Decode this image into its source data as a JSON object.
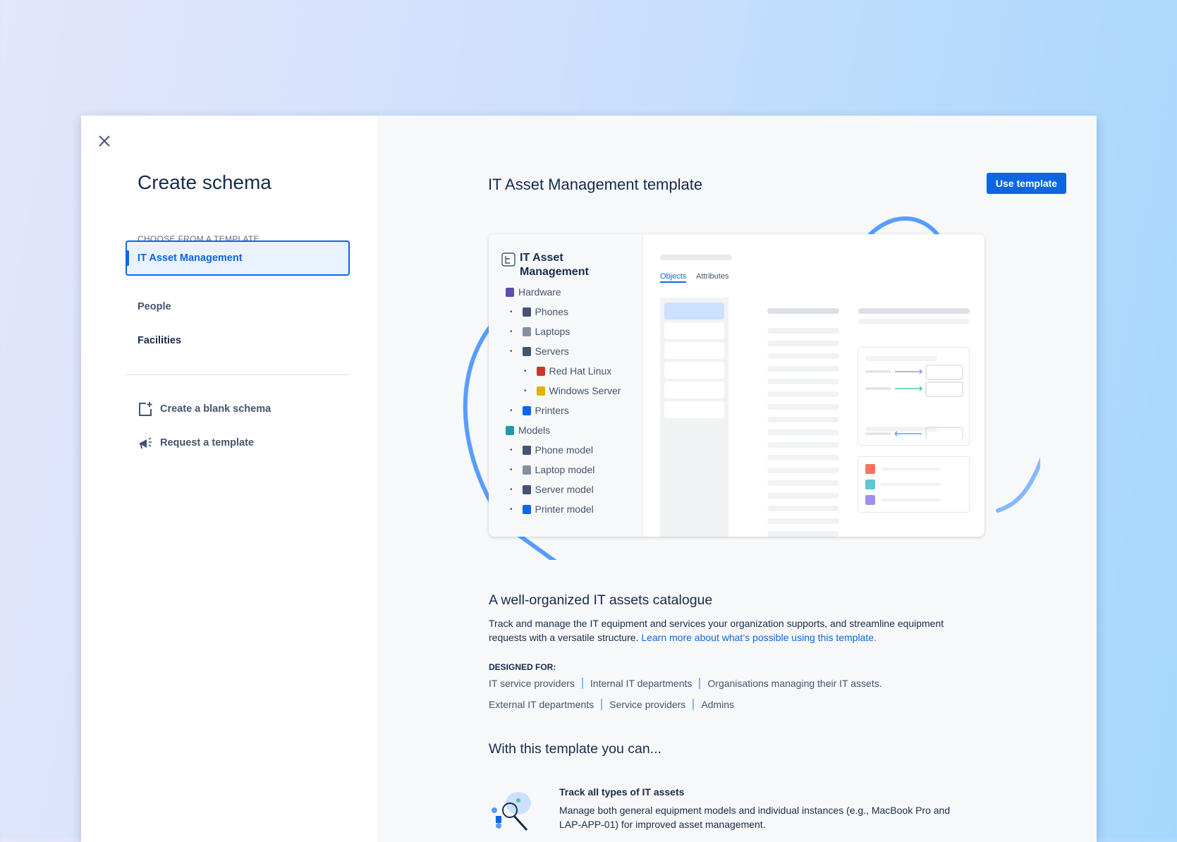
{
  "sidebar": {
    "title": "Create schema",
    "section_label": "CHOOSE FROM A TEMPLATE",
    "templates": [
      {
        "label": "IT Asset Management",
        "selected": true
      },
      {
        "label": "People"
      },
      {
        "label": "Facilities"
      }
    ],
    "actions": [
      {
        "label": "Create a blank schema",
        "icon": "add-page-icon"
      },
      {
        "label": "Request a template",
        "icon": "megaphone-icon"
      }
    ]
  },
  "main": {
    "title": "IT Asset Management template",
    "use_button": "Use template",
    "preview": {
      "schema_name": "IT Asset Management",
      "tabs": [
        "Objects",
        "Attributes"
      ],
      "tree": [
        {
          "label": "Hardware",
          "level": 0
        },
        {
          "label": "Phones",
          "level": 1
        },
        {
          "label": "Laptops",
          "level": 1
        },
        {
          "label": "Servers",
          "level": 1
        },
        {
          "label": "Red Hat Linux",
          "level": 2
        },
        {
          "label": "Windows Server",
          "level": 2
        },
        {
          "label": "Printers",
          "level": 1
        },
        {
          "label": "Models",
          "level": 0
        },
        {
          "label": "Phone model",
          "level": 1
        },
        {
          "label": "Laptop model",
          "level": 1
        },
        {
          "label": "Server model",
          "level": 1
        },
        {
          "label": "Printer model",
          "level": 1
        }
      ],
      "legend_colors": [
        "#f87462",
        "#60c6d2",
        "#9f8fef"
      ]
    },
    "heading": "A well-organized IT assets catalogue",
    "description": "Track and manage the IT equipment and services your organization supports, and streamline equipment requests with a versatile structure.",
    "learn_more": "Learn more about what’s possible using this template.",
    "designed_for_label": "DESIGNED FOR:",
    "designed_for_rows": [
      [
        "IT service providers",
        "Internal IT departments",
        "Organisations managing their IT assets."
      ],
      [
        "External IT departments",
        "Service providers",
        "Admins"
      ]
    ],
    "features_heading": "With this template you can...",
    "features": [
      {
        "title": "Track all types of IT assets",
        "description": "Manage both general equipment models and individual instances (e.g., MacBook Pro and LAP-APP-01) for improved asset management."
      }
    ]
  },
  "colors": {
    "accent": "#0c66e4"
  }
}
